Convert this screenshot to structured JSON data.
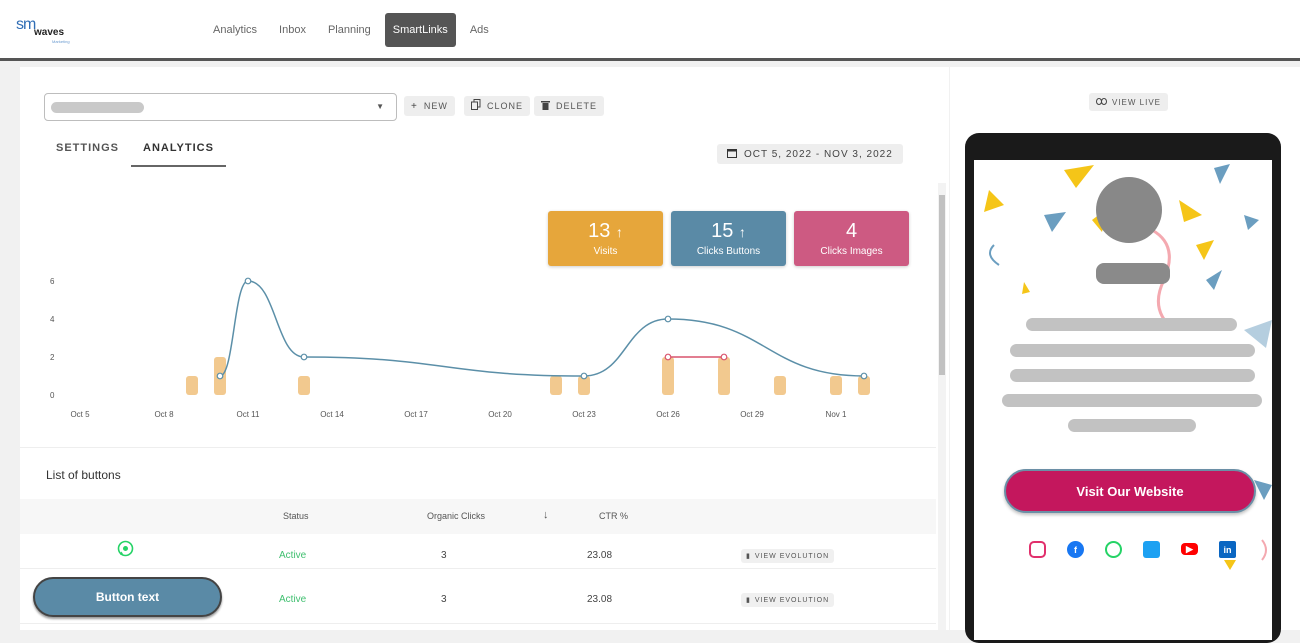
{
  "app": {
    "logo_top": "sm",
    "logo_bottom": "waves",
    "logo_tag": "Marketing"
  },
  "nav": [
    {
      "label": "Analytics",
      "active": false
    },
    {
      "label": "Inbox",
      "active": false
    },
    {
      "label": "Planning",
      "active": false
    },
    {
      "label": "SmartLinks",
      "active": true
    },
    {
      "label": "Ads",
      "active": false
    }
  ],
  "toolbar": {
    "new_label": "NEW",
    "clone_label": "CLONE",
    "delete_label": "DELETE"
  },
  "subtabs": [
    {
      "label": "SETTINGS",
      "active": false
    },
    {
      "label": "ANALYTICS",
      "active": true
    }
  ],
  "daterange": "OCT 5, 2022 - NOV 3, 2022",
  "kpis": [
    {
      "value": "13",
      "label": "Visits",
      "color": "#e6a63b"
    },
    {
      "value": "15",
      "label": "Clicks Buttons",
      "color": "#5a8aa6"
    },
    {
      "value": "4",
      "label": "Clicks Images",
      "color": "#cd5a82"
    }
  ],
  "chart_data": {
    "type": "line",
    "x_ticks": [
      "Oct 5",
      "Oct 8",
      "Oct 11",
      "Oct 14",
      "Oct 17",
      "Oct 20",
      "Oct 23",
      "Oct 26",
      "Oct 29",
      "Nov 1"
    ],
    "y_ticks": [
      "0",
      "2",
      "4",
      "6"
    ],
    "ylim": [
      0,
      6.5
    ],
    "series": [
      {
        "kind": "line",
        "color": "#5b8fa8",
        "points": [
          [
            "Oct 10",
            1
          ],
          [
            "Oct 11",
            6
          ],
          [
            "Oct 13",
            2
          ],
          [
            "Oct 23",
            1
          ],
          [
            "Oct 26",
            4
          ],
          [
            "Nov 2",
            1
          ]
        ]
      },
      {
        "kind": "line",
        "color": "#d9536d",
        "points": [
          [
            "Oct 26",
            2
          ],
          [
            "Oct 28",
            2
          ]
        ]
      },
      {
        "kind": "bar",
        "color": "#f2c98f",
        "points": [
          [
            "Oct 9",
            1
          ],
          [
            "Oct 10",
            2
          ],
          [
            "Oct 13",
            1
          ],
          [
            "Oct 22",
            1
          ],
          [
            "Oct 23",
            1
          ],
          [
            "Oct 26",
            2
          ],
          [
            "Oct 28",
            2
          ],
          [
            "Oct 30",
            1
          ],
          [
            "Nov 1",
            1
          ],
          [
            "Nov 2",
            1
          ]
        ]
      }
    ]
  },
  "list": {
    "title": "List of buttons",
    "headers": {
      "status": "Status",
      "organic": "Organic Clicks",
      "ctr": "CTR %"
    },
    "rows": [
      {
        "icon": "whatsapp-icon",
        "status": "Active",
        "clicks": "3",
        "ctr": "23.08",
        "action": "VIEW EVOLUTION"
      },
      {
        "button_label": "Button text",
        "status": "Active",
        "clicks": "3",
        "ctr": "23.08",
        "action": "VIEW EVOLUTION"
      }
    ]
  },
  "preview": {
    "view_live_label": "VIEW LIVE",
    "cta_label": "Visit Our Website",
    "socials": [
      {
        "icon": "instagram-icon",
        "color": "#e1306c"
      },
      {
        "icon": "facebook-icon",
        "color": "#1877f2"
      },
      {
        "icon": "whatsapp-icon",
        "color": "#25d366"
      },
      {
        "icon": "twitter-icon",
        "color": "#1da1f2"
      },
      {
        "icon": "youtube-icon",
        "color": "#ff0000"
      },
      {
        "icon": "linkedin-icon",
        "color": "#0a66c2"
      }
    ]
  }
}
